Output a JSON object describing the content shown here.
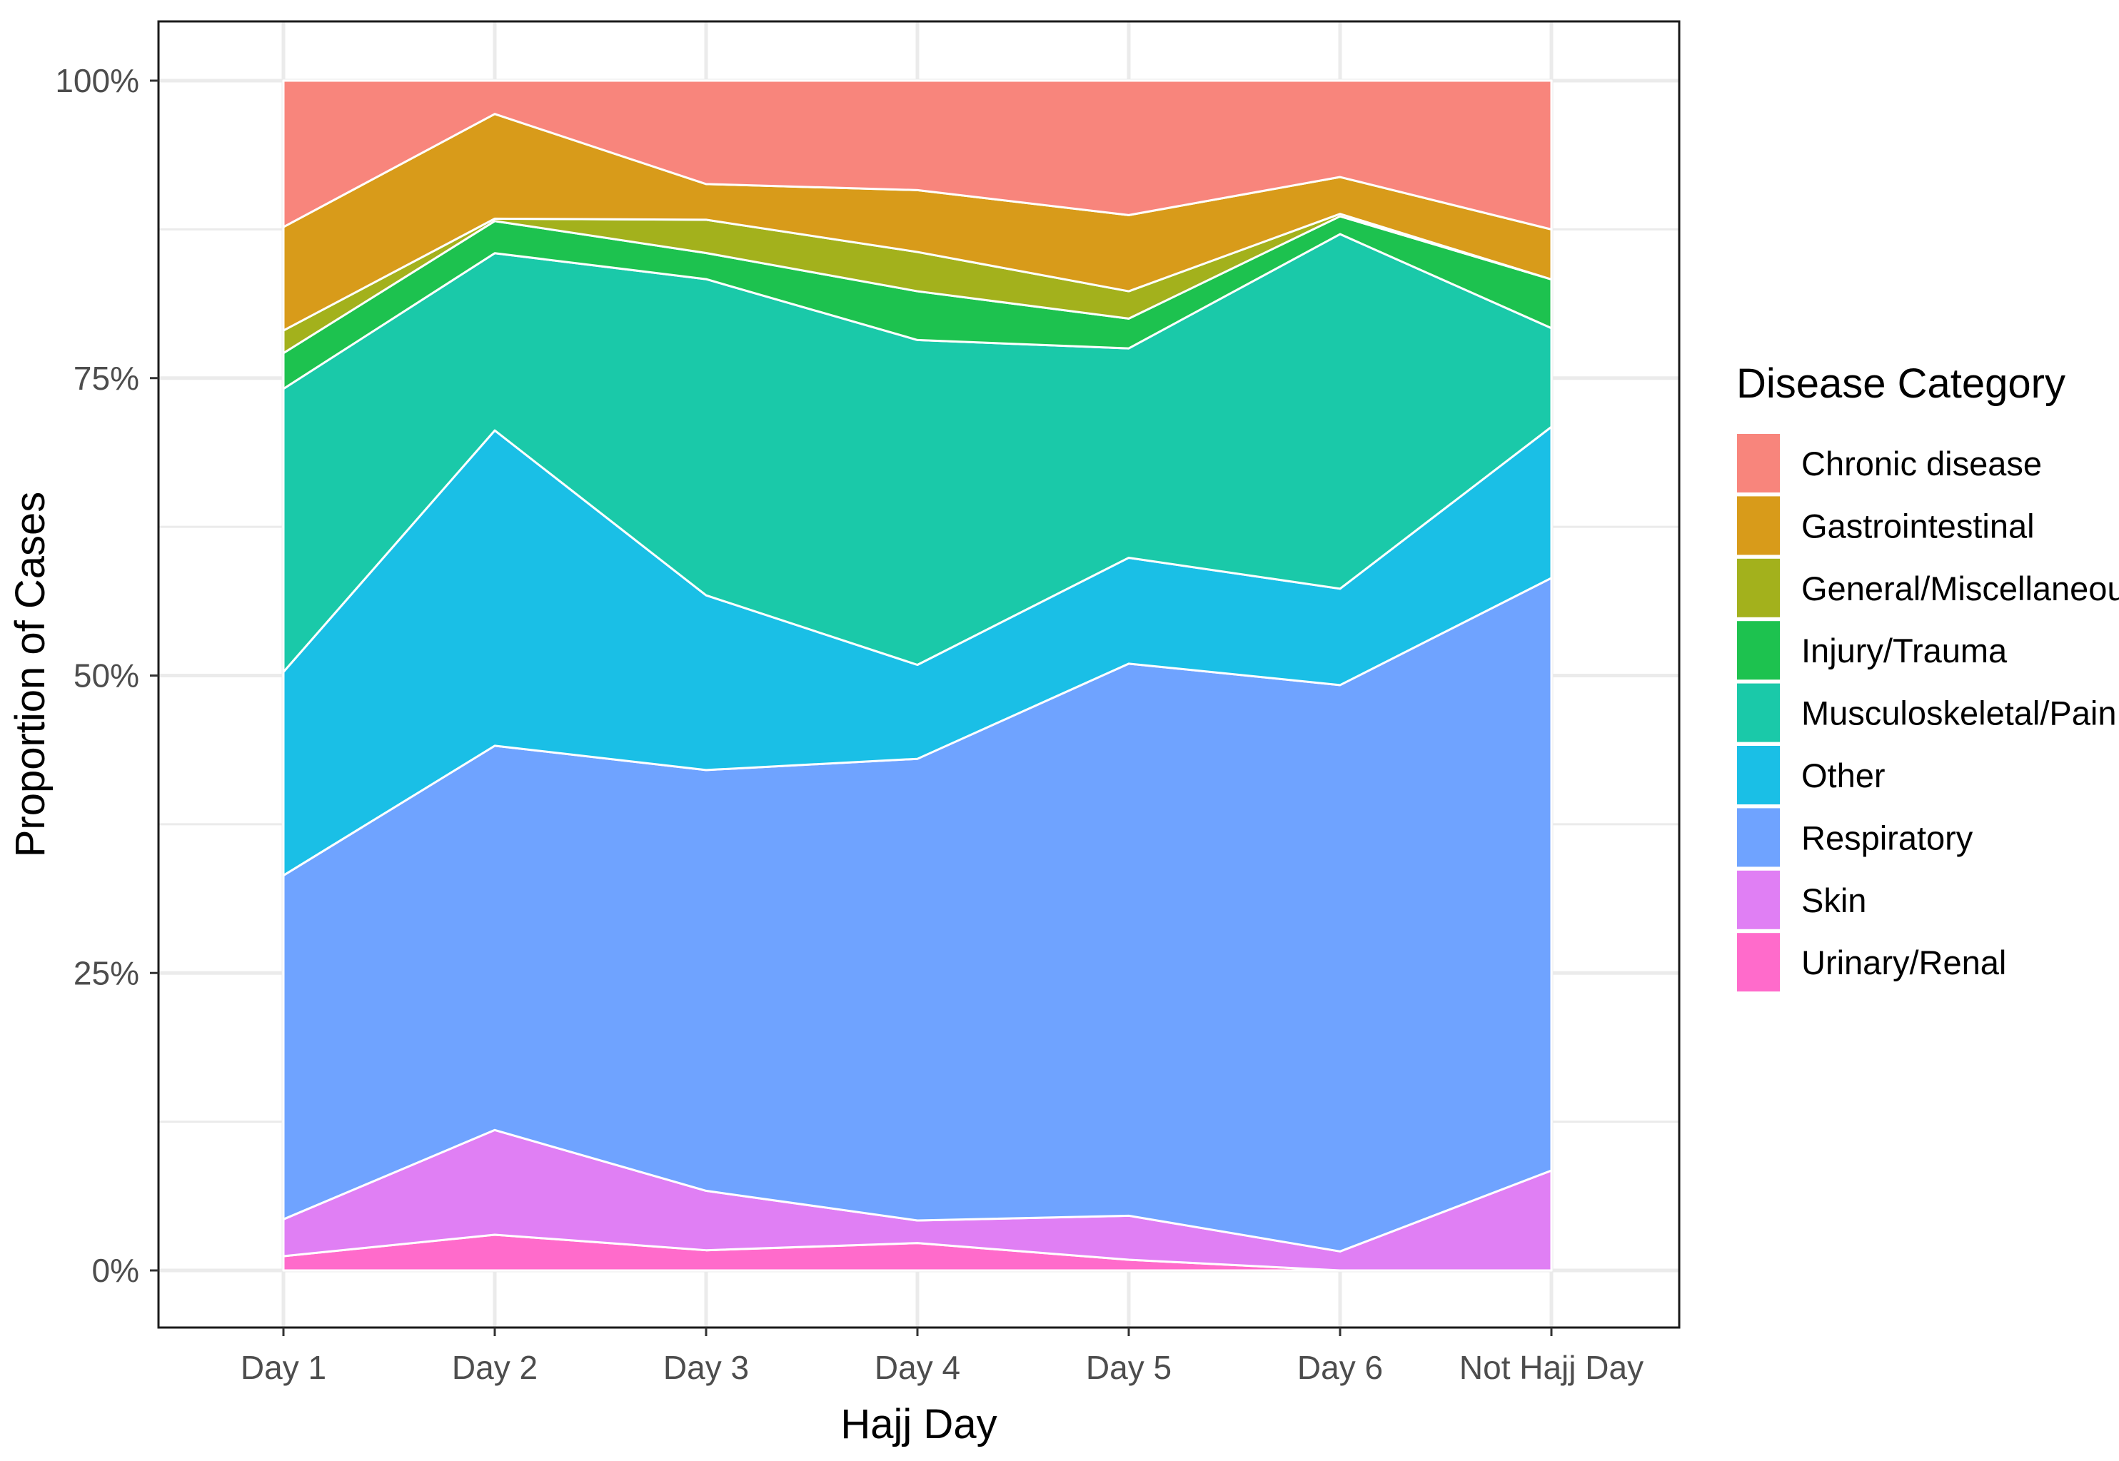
{
  "chart_data": {
    "type": "area",
    "stacked": true,
    "normalized": true,
    "title": "",
    "xlabel": "Hajj Day",
    "ylabel": "Proportion of Cases",
    "categories": [
      "Day 1",
      "Day 2",
      "Day 3",
      "Day 4",
      "Day 5",
      "Day 6",
      "Not Hajj Day"
    ],
    "y_ticks": [
      "0%",
      "25%",
      "50%",
      "75%",
      "100%"
    ],
    "ylim": [
      0,
      100
    ],
    "grid": true,
    "legend_title": "Disease Category",
    "legend_position": "right",
    "series": [
      {
        "name": "Urinary/Renal",
        "color": "#FF6BCB",
        "values": [
          1.2,
          3.0,
          1.7,
          2.3,
          0.9,
          0.0,
          0.0
        ]
      },
      {
        "name": "Skin",
        "color": "#E07FF4",
        "values": [
          3.1,
          8.8,
          5.0,
          1.9,
          3.7,
          1.6,
          8.4
        ]
      },
      {
        "name": "Respiratory",
        "color": "#6FA3FF",
        "values": [
          28.9,
          32.3,
          35.4,
          38.8,
          46.4,
          47.6,
          49.8
        ]
      },
      {
        "name": "Other",
        "color": "#1ABFE6",
        "values": [
          17.1,
          26.5,
          14.7,
          7.9,
          8.9,
          8.1,
          12.7
        ]
      },
      {
        "name": "Musculoskeletal/Pain",
        "color": "#1AC9A9",
        "values": [
          23.8,
          14.9,
          26.6,
          27.3,
          17.6,
          29.8,
          8.3
        ]
      },
      {
        "name": "Injury/Trauma",
        "color": "#1DC24F",
        "values": [
          3.0,
          2.7,
          2.2,
          4.1,
          2.5,
          1.5,
          4.1
        ]
      },
      {
        "name": "General/Miscellaneous",
        "color": "#A3B11C",
        "values": [
          1.9,
          0.2,
          2.8,
          3.3,
          2.3,
          0.2,
          0.0
        ]
      },
      {
        "name": "Gastrointestinal",
        "color": "#D89B1A",
        "values": [
          8.7,
          8.8,
          3.0,
          5.2,
          6.4,
          3.1,
          4.2
        ]
      },
      {
        "name": "Chronic disease",
        "color": "#F8857C",
        "values": [
          12.3,
          2.8,
          8.7,
          9.2,
          11.3,
          8.1,
          12.5
        ]
      }
    ],
    "legend_order": [
      "Chronic disease",
      "Gastrointestinal",
      "General/Miscellaneous",
      "Injury/Trauma",
      "Musculoskeletal/Pain",
      "Other",
      "Respiratory",
      "Skin",
      "Urinary/Renal"
    ]
  }
}
